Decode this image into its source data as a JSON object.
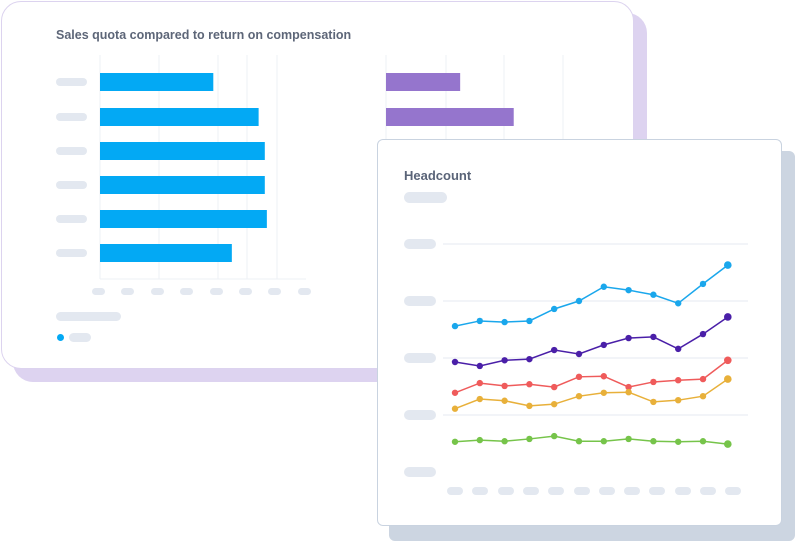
{
  "chart_data": [
    {
      "type": "bar",
      "orientation": "horizontal",
      "title": "Sales quota compared to return on compensation",
      "series": [
        {
          "color": "#03a9f4",
          "values": [
            55,
            77,
            80,
            80,
            81,
            64
          ]
        },
        {
          "color": "#9575cd",
          "values": [
            36,
            62
          ]
        }
      ],
      "xlim": [
        0,
        100
      ],
      "grid": true,
      "legend": "bottom-left"
    },
    {
      "type": "line",
      "title": "Headcount",
      "ylim": [
        0,
        4
      ],
      "grid": true,
      "series": [
        {
          "color": "#1aa7ec",
          "values": [
            2.56,
            2.65,
            2.63,
            2.65,
            2.86,
            3.0,
            3.25,
            3.19,
            3.11,
            2.96,
            3.3,
            3.63
          ]
        },
        {
          "color": "#4a1fa8",
          "values": [
            1.93,
            1.86,
            1.96,
            1.98,
            2.14,
            2.07,
            2.23,
            2.35,
            2.37,
            2.16,
            2.42,
            2.72
          ]
        },
        {
          "color": "#ef5b5b",
          "values": [
            1.39,
            1.56,
            1.51,
            1.54,
            1.49,
            1.67,
            1.68,
            1.49,
            1.58,
            1.61,
            1.63,
            1.96
          ]
        },
        {
          "color": "#e8b03a",
          "values": [
            1.11,
            1.28,
            1.25,
            1.16,
            1.19,
            1.33,
            1.39,
            1.4,
            1.23,
            1.26,
            1.33,
            1.63
          ]
        },
        {
          "color": "#76c44a",
          "values": [
            0.53,
            0.56,
            0.54,
            0.58,
            0.63,
            0.54,
            0.54,
            0.58,
            0.54,
            0.53,
            0.54,
            0.49
          ]
        }
      ]
    }
  ]
}
